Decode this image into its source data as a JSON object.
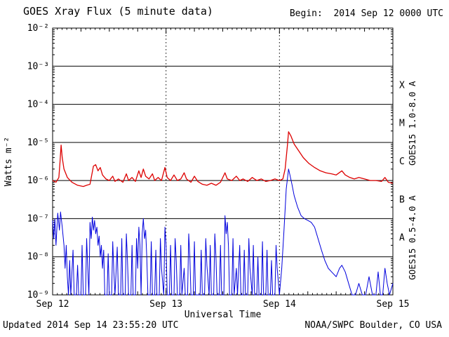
{
  "header": {
    "title": "GOES Xray Flux (5 minute data)",
    "begin": "Begin:  2014 Sep 12 0000 UTC"
  },
  "footer": {
    "updated": "Updated 2014 Sep 14 23:55:20 UTC",
    "source": "NOAA/SWPC Boulder, CO USA"
  },
  "chart_data": {
    "type": "line",
    "title": "GOES Xray Flux (5 minute data)",
    "xlabel": "Universal Time",
    "ylabel": "Watts m⁻²",
    "y_scale": "log",
    "ylim": [
      1e-09,
      0.01
    ],
    "x_range_days": [
      0,
      3
    ],
    "x_tick_labels": [
      "Sep 12",
      "Sep 13",
      "Sep 14",
      "Sep 15"
    ],
    "y_tick_labels": [
      "10⁻²",
      "10⁻³",
      "10⁻⁴",
      "10⁻⁵",
      "10⁻⁶",
      "10⁻⁷",
      "10⁻⁸",
      "10⁻⁹"
    ],
    "flare_class_letters": [
      "X",
      "M",
      "C",
      "B",
      "A"
    ],
    "grid": {
      "horizontal_solid_decades": [
        -3,
        -4,
        -5,
        -6,
        -7,
        -8
      ],
      "vertical_dotted_days": [
        1,
        2
      ]
    },
    "series": [
      {
        "name": "GOES15 1.0-8.0 A",
        "color": "#dd0000",
        "points": [
          [
            0.0,
            1e-06
          ],
          [
            0.03,
            9e-07
          ],
          [
            0.055,
            1.2e-06
          ],
          [
            0.065,
            3e-06
          ],
          [
            0.075,
            8.5e-06
          ],
          [
            0.085,
            4e-06
          ],
          [
            0.1,
            2e-06
          ],
          [
            0.13,
            1.2e-06
          ],
          [
            0.17,
            9e-07
          ],
          [
            0.22,
            7.5e-07
          ],
          [
            0.27,
            7e-07
          ],
          [
            0.3,
            7.5e-07
          ],
          [
            0.33,
            8e-07
          ],
          [
            0.36,
            2.4e-06
          ],
          [
            0.38,
            2.6e-06
          ],
          [
            0.4,
            1.8e-06
          ],
          [
            0.42,
            2.2e-06
          ],
          [
            0.44,
            1.4e-06
          ],
          [
            0.47,
            1.1e-06
          ],
          [
            0.5,
            1e-06
          ],
          [
            0.53,
            1.3e-06
          ],
          [
            0.55,
            9.5e-07
          ],
          [
            0.58,
            1.1e-06
          ],
          [
            0.62,
            9e-07
          ],
          [
            0.65,
            1.5e-06
          ],
          [
            0.67,
            1e-06
          ],
          [
            0.7,
            1.2e-06
          ],
          [
            0.73,
            9.5e-07
          ],
          [
            0.76,
            1.8e-06
          ],
          [
            0.78,
            1.2e-06
          ],
          [
            0.8,
            2e-06
          ],
          [
            0.82,
            1.3e-06
          ],
          [
            0.85,
            1.1e-06
          ],
          [
            0.88,
            1.5e-06
          ],
          [
            0.9,
            1e-06
          ],
          [
            0.93,
            1.2e-06
          ],
          [
            0.96,
            1e-06
          ],
          [
            0.99,
            2.2e-06
          ],
          [
            1.01,
            1.2e-06
          ],
          [
            1.04,
            1e-06
          ],
          [
            1.07,
            1.4e-06
          ],
          [
            1.1,
            1e-06
          ],
          [
            1.13,
            1.1e-06
          ],
          [
            1.16,
            1.6e-06
          ],
          [
            1.18,
            1.1e-06
          ],
          [
            1.22,
            9e-07
          ],
          [
            1.25,
            1.3e-06
          ],
          [
            1.28,
            9.5e-07
          ],
          [
            1.32,
            8e-07
          ],
          [
            1.36,
            7.5e-07
          ],
          [
            1.4,
            8.5e-07
          ],
          [
            1.44,
            7.5e-07
          ],
          [
            1.48,
            9e-07
          ],
          [
            1.52,
            1.6e-06
          ],
          [
            1.54,
            1.1e-06
          ],
          [
            1.58,
            1e-06
          ],
          [
            1.62,
            1.3e-06
          ],
          [
            1.65,
            1e-06
          ],
          [
            1.68,
            1.1e-06
          ],
          [
            1.72,
            9.5e-07
          ],
          [
            1.76,
            1.2e-06
          ],
          [
            1.8,
            1e-06
          ],
          [
            1.84,
            1.1e-06
          ],
          [
            1.88,
            9.5e-07
          ],
          [
            1.92,
            1e-06
          ],
          [
            1.96,
            1.1e-06
          ],
          [
            2.0,
            1e-06
          ],
          [
            2.03,
            1.1e-06
          ],
          [
            2.05,
            2e-06
          ],
          [
            2.07,
            8e-06
          ],
          [
            2.08,
            1.9e-05
          ],
          [
            2.1,
            1.5e-05
          ],
          [
            2.13,
            9e-06
          ],
          [
            2.17,
            6e-06
          ],
          [
            2.21,
            4e-06
          ],
          [
            2.26,
            2.8e-06
          ],
          [
            2.31,
            2.2e-06
          ],
          [
            2.36,
            1.8e-06
          ],
          [
            2.41,
            1.6e-06
          ],
          [
            2.46,
            1.5e-06
          ],
          [
            2.5,
            1.4e-06
          ],
          [
            2.55,
            1.8e-06
          ],
          [
            2.58,
            1.4e-06
          ],
          [
            2.62,
            1.2e-06
          ],
          [
            2.66,
            1.1e-06
          ],
          [
            2.7,
            1.2e-06
          ],
          [
            2.75,
            1.1e-06
          ],
          [
            2.8,
            1e-06
          ],
          [
            2.85,
            1e-06
          ],
          [
            2.9,
            9.5e-07
          ],
          [
            2.93,
            1.2e-06
          ],
          [
            2.96,
            9e-07
          ],
          [
            3.0,
            8.5e-07
          ]
        ]
      },
      {
        "name": "GOES15 0.5-4.0 A",
        "color": "#0000dd",
        "points": [
          [
            0.0,
            9e-08
          ],
          [
            0.01,
            3e-08
          ],
          [
            0.02,
            1e-07
          ],
          [
            0.03,
            2e-08
          ],
          [
            0.045,
            1.4e-07
          ],
          [
            0.06,
            5e-08
          ],
          [
            0.07,
            1.5e-07
          ],
          [
            0.085,
            6e-08
          ],
          [
            0.1,
            2e-08
          ],
          [
            0.11,
            5e-09
          ],
          [
            0.12,
            2e-08
          ],
          [
            0.13,
            3e-09
          ],
          [
            0.14,
            1e-09
          ],
          [
            0.15,
            8e-09
          ],
          [
            0.16,
            1e-09
          ],
          [
            0.18,
            1.5e-08
          ],
          [
            0.19,
            1e-09
          ],
          [
            0.21,
            1e-09
          ],
          [
            0.22,
            6e-09
          ],
          [
            0.23,
            1e-09
          ],
          [
            0.25,
            1e-09
          ],
          [
            0.26,
            2e-08
          ],
          [
            0.27,
            1e-09
          ],
          [
            0.29,
            1e-09
          ],
          [
            0.3,
            3e-08
          ],
          [
            0.31,
            5e-09
          ],
          [
            0.32,
            1e-09
          ],
          [
            0.33,
            8e-08
          ],
          [
            0.34,
            3e-08
          ],
          [
            0.35,
            1.1e-07
          ],
          [
            0.36,
            5e-08
          ],
          [
            0.37,
            9e-08
          ],
          [
            0.38,
            4e-08
          ],
          [
            0.39,
            6e-08
          ],
          [
            0.4,
            2e-08
          ],
          [
            0.41,
            3.5e-08
          ],
          [
            0.42,
            1e-08
          ],
          [
            0.43,
            2e-08
          ],
          [
            0.44,
            5e-09
          ],
          [
            0.45,
            1.5e-08
          ],
          [
            0.46,
            1e-09
          ],
          [
            0.48,
            1e-09
          ],
          [
            0.49,
            1.2e-08
          ],
          [
            0.5,
            1e-09
          ],
          [
            0.52,
            1e-09
          ],
          [
            0.53,
            2.5e-08
          ],
          [
            0.54,
            4e-09
          ],
          [
            0.55,
            1e-09
          ],
          [
            0.57,
            1.8e-08
          ],
          [
            0.58,
            1e-09
          ],
          [
            0.6,
            1e-09
          ],
          [
            0.61,
            3e-08
          ],
          [
            0.62,
            1e-09
          ],
          [
            0.64,
            1e-09
          ],
          [
            0.65,
            4e-08
          ],
          [
            0.66,
            8e-09
          ],
          [
            0.67,
            1e-09
          ],
          [
            0.69,
            1e-09
          ],
          [
            0.7,
            2e-08
          ],
          [
            0.71,
            1e-09
          ],
          [
            0.73,
            1e-09
          ],
          [
            0.74,
            3e-08
          ],
          [
            0.75,
            5e-09
          ],
          [
            0.76,
            6e-08
          ],
          [
            0.77,
            2e-08
          ],
          [
            0.78,
            1e-09
          ],
          [
            0.79,
            4e-08
          ],
          [
            0.8,
            1e-07
          ],
          [
            0.81,
            3e-08
          ],
          [
            0.82,
            5e-08
          ],
          [
            0.83,
            1e-08
          ],
          [
            0.84,
            1e-09
          ],
          [
            0.86,
            1e-09
          ],
          [
            0.87,
            2.5e-08
          ],
          [
            0.88,
            1e-09
          ],
          [
            0.9,
            1e-09
          ],
          [
            0.91,
            1.5e-08
          ],
          [
            0.92,
            1e-09
          ],
          [
            0.94,
            1e-09
          ],
          [
            0.95,
            3e-08
          ],
          [
            0.96,
            5e-09
          ],
          [
            0.98,
            1e-09
          ],
          [
            0.99,
            6e-08
          ],
          [
            1.0,
            2e-08
          ],
          [
            1.01,
            1e-09
          ],
          [
            1.03,
            1e-09
          ],
          [
            1.04,
            2e-08
          ],
          [
            1.05,
            1e-09
          ],
          [
            1.07,
            1e-09
          ],
          [
            1.08,
            3e-08
          ],
          [
            1.09,
            8e-09
          ],
          [
            1.1,
            1e-09
          ],
          [
            1.12,
            1e-09
          ],
          [
            1.13,
            2e-08
          ],
          [
            1.14,
            1e-09
          ],
          [
            1.16,
            5e-09
          ],
          [
            1.17,
            1e-09
          ],
          [
            1.19,
            1e-09
          ],
          [
            1.2,
            4e-08
          ],
          [
            1.21,
            1e-08
          ],
          [
            1.22,
            1e-09
          ],
          [
            1.24,
            1e-09
          ],
          [
            1.25,
            2.5e-08
          ],
          [
            1.26,
            1e-09
          ],
          [
            1.28,
            1e-09
          ],
          [
            1.3,
            1e-09
          ],
          [
            1.31,
            1.5e-08
          ],
          [
            1.32,
            1e-09
          ],
          [
            1.34,
            1e-09
          ],
          [
            1.35,
            3e-08
          ],
          [
            1.36,
            6e-09
          ],
          [
            1.38,
            1e-09
          ],
          [
            1.39,
            2e-08
          ],
          [
            1.4,
            1e-09
          ],
          [
            1.42,
            1e-09
          ],
          [
            1.43,
            4e-08
          ],
          [
            1.44,
            1e-08
          ],
          [
            1.45,
            1e-09
          ],
          [
            1.47,
            1e-09
          ],
          [
            1.48,
            2e-08
          ],
          [
            1.49,
            1e-09
          ],
          [
            1.51,
            1e-09
          ],
          [
            1.52,
            1.2e-07
          ],
          [
            1.53,
            4e-08
          ],
          [
            1.54,
            8e-08
          ],
          [
            1.55,
            2e-08
          ],
          [
            1.56,
            1e-09
          ],
          [
            1.58,
            1e-09
          ],
          [
            1.59,
            3e-08
          ],
          [
            1.6,
            1e-09
          ],
          [
            1.62,
            5e-09
          ],
          [
            1.63,
            1e-09
          ],
          [
            1.65,
            2e-08
          ],
          [
            1.66,
            1e-09
          ],
          [
            1.68,
            1e-09
          ],
          [
            1.69,
            1.5e-08
          ],
          [
            1.7,
            1e-09
          ],
          [
            1.72,
            1e-09
          ],
          [
            1.73,
            3e-08
          ],
          [
            1.74,
            5e-09
          ],
          [
            1.76,
            1e-09
          ],
          [
            1.77,
            2e-08
          ],
          [
            1.78,
            1e-09
          ],
          [
            1.8,
            1e-09
          ],
          [
            1.81,
            1e-08
          ],
          [
            1.82,
            1e-09
          ],
          [
            1.84,
            1e-09
          ],
          [
            1.85,
            2.5e-08
          ],
          [
            1.86,
            1e-09
          ],
          [
            1.88,
            1e-09
          ],
          [
            1.89,
            1.5e-08
          ],
          [
            1.9,
            1e-09
          ],
          [
            1.92,
            1e-09
          ],
          [
            1.93,
            8e-09
          ],
          [
            1.94,
            1e-09
          ],
          [
            1.96,
            1e-09
          ],
          [
            1.97,
            2e-08
          ],
          [
            1.98,
            5e-09
          ],
          [
            2.0,
            1e-09
          ],
          [
            2.02,
            5e-09
          ],
          [
            2.04,
            5e-08
          ],
          [
            2.06,
            6e-07
          ],
          [
            2.08,
            2e-06
          ],
          [
            2.09,
            1.5e-06
          ],
          [
            2.11,
            8e-07
          ],
          [
            2.13,
            4e-07
          ],
          [
            2.16,
            2e-07
          ],
          [
            2.19,
            1.2e-07
          ],
          [
            2.22,
            1e-07
          ],
          [
            2.25,
            9e-08
          ],
          [
            2.28,
            8e-08
          ],
          [
            2.31,
            6e-08
          ],
          [
            2.34,
            3e-08
          ],
          [
            2.37,
            1.5e-08
          ],
          [
            2.4,
            8e-09
          ],
          [
            2.43,
            5e-09
          ],
          [
            2.46,
            4e-09
          ],
          [
            2.5,
            3e-09
          ],
          [
            2.53,
            5e-09
          ],
          [
            2.55,
            6e-09
          ],
          [
            2.58,
            4e-09
          ],
          [
            2.61,
            2e-09
          ],
          [
            2.64,
            1e-09
          ],
          [
            2.67,
            1e-09
          ],
          [
            2.7,
            2e-09
          ],
          [
            2.73,
            1e-09
          ],
          [
            2.76,
            1e-09
          ],
          [
            2.79,
            3e-09
          ],
          [
            2.82,
            1e-09
          ],
          [
            2.85,
            1e-09
          ],
          [
            2.87,
            4e-09
          ],
          [
            2.89,
            1e-09
          ],
          [
            2.91,
            1e-09
          ],
          [
            2.93,
            5e-09
          ],
          [
            2.95,
            2e-09
          ],
          [
            2.97,
            1e-09
          ],
          [
            3.0,
            2e-09
          ]
        ]
      }
    ]
  }
}
